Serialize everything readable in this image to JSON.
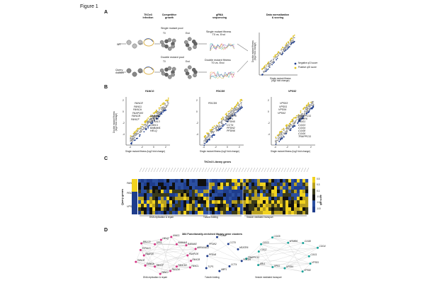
{
  "figure_title": "Figure 1",
  "panel_a": {
    "letter": "A",
    "headers": {
      "infection": "TKOv3\ninfection",
      "growth": "Competitive\ngrowth",
      "sequencing": "gRNA\nsequencing",
      "normalization": "Data normalization\n& scoring"
    },
    "single_pool_label": "Single mutant pool",
    "double_pool_label": "Double mutant pool",
    "t0_label": "T0",
    "end_label": "End",
    "wt_label": "WT",
    "query_label": "Query\nmutant",
    "single_fitness_label": "Single mutant fitness\nT0 vs. End",
    "double_fitness_label": "Double mutant fitness\nT0 vs. End",
    "scatter_xlabel": "Single mutant fitness\n(log2 fold change)",
    "scatter_ylabel": "Double mutant fitness\n(log2 fold change)",
    "legend_negative": "Negative qGI score",
    "legend_positive": "Positive qGI score"
  },
  "panel_b": {
    "letter": "B",
    "ylabel": "Double mutant fitness\n(log2 fold change)",
    "xlabel": "Single mutant fitness (log2 fold change)",
    "colors": {
      "positive": "#e0c21d",
      "negative": "#1f3d8c",
      "neutral": "#9a9a9a"
    },
    "plots": [
      {
        "title": "FANCG",
        "x_ticks": [
          "-4",
          "-2",
          "0",
          "2"
        ],
        "y_ticks": [
          "2",
          "0",
          "-2",
          "-4"
        ],
        "genes_left": [
          "FANCE",
          "FANCL",
          "FANCA",
          "FAAP100",
          "FANCB",
          "FANCF"
        ],
        "genes_right": [
          "BABAM2",
          "BRCC3",
          "STRA13",
          "UIMC1",
          "BABAM1",
          "HELQ"
        ]
      },
      {
        "title": "PDCD5",
        "x_ticks": [
          "-4",
          "-2",
          "0",
          "2"
        ],
        "y_ticks": [
          "2",
          "0",
          "-2",
          "-4"
        ],
        "genes_left": [
          "PDCD5"
        ],
        "genes_right": [
          "HEATR6",
          "VBP1",
          "PFDN5",
          "CCT4",
          "PFDN2",
          "PFDN6"
        ]
      },
      {
        "title": "VPS52",
        "x_ticks": [
          "-4",
          "-2",
          "0",
          "2"
        ],
        "y_ticks": [
          "2",
          "0",
          "-2",
          "-4"
        ],
        "genes_left": [
          "VPS53",
          "VPS51",
          "VPS54",
          "VPS52"
        ],
        "genes_right": [
          "TRAPPC11",
          "MTMR6",
          "COG1",
          "COG3",
          "COG4",
          "COG8",
          "COG6",
          "TRAPPC11"
        ]
      }
    ]
  },
  "panel_c": {
    "letter": "C",
    "title": "TKOv3 Library genes",
    "ylabel": "Query genes",
    "rows": [
      "FANCG",
      "PDCD5",
      "VPS52"
    ],
    "groups": [
      "DNA replication & repair",
      "Tubulin folding",
      "Vesicle mediated transport"
    ],
    "colorbar_label": "qGI score",
    "colorbar_ticks": [
      "0.5",
      "0.3",
      "0.1",
      "-0.1",
      "-0.3",
      "-0.5"
    ]
  },
  "panel_d": {
    "letter": "D",
    "title": "384 Functionally-enriched library gene clusters",
    "clusters": [
      {
        "label": "DNA replication & repair",
        "color": "#d63384",
        "genes": [
          "FAAP100",
          "FANCB",
          "FANCL",
          "FANCD2",
          "FANCM",
          "FANCI",
          "FANCF",
          "FANCA",
          "FANCE",
          "FAAP20",
          "STRA13",
          "BRCC3",
          "SFX1",
          "HELQ",
          "UIMC1",
          "BABAM1",
          "BABAM2",
          "ABRAXAS1"
        ]
      },
      {
        "label": "Tubulin folding",
        "color": "#1f3d8c",
        "genes": [
          "CCT4",
          "VBP1",
          "TCP1",
          "PFDN5",
          "PFDN2",
          "PFDN6",
          "CCT8",
          "HEATR6",
          "PDCD5"
        ]
      },
      {
        "label": "Vesicle mediated transport",
        "color": "#1aa39a",
        "genes": [
          "VPS1",
          "ARL1",
          "TRAPPC11",
          "COG2",
          "COG3",
          "COG5",
          "MTMR6",
          "COG8",
          "COG4",
          "COG1",
          "VPS51",
          "VPS52",
          "VPS54"
        ]
      }
    ]
  }
}
